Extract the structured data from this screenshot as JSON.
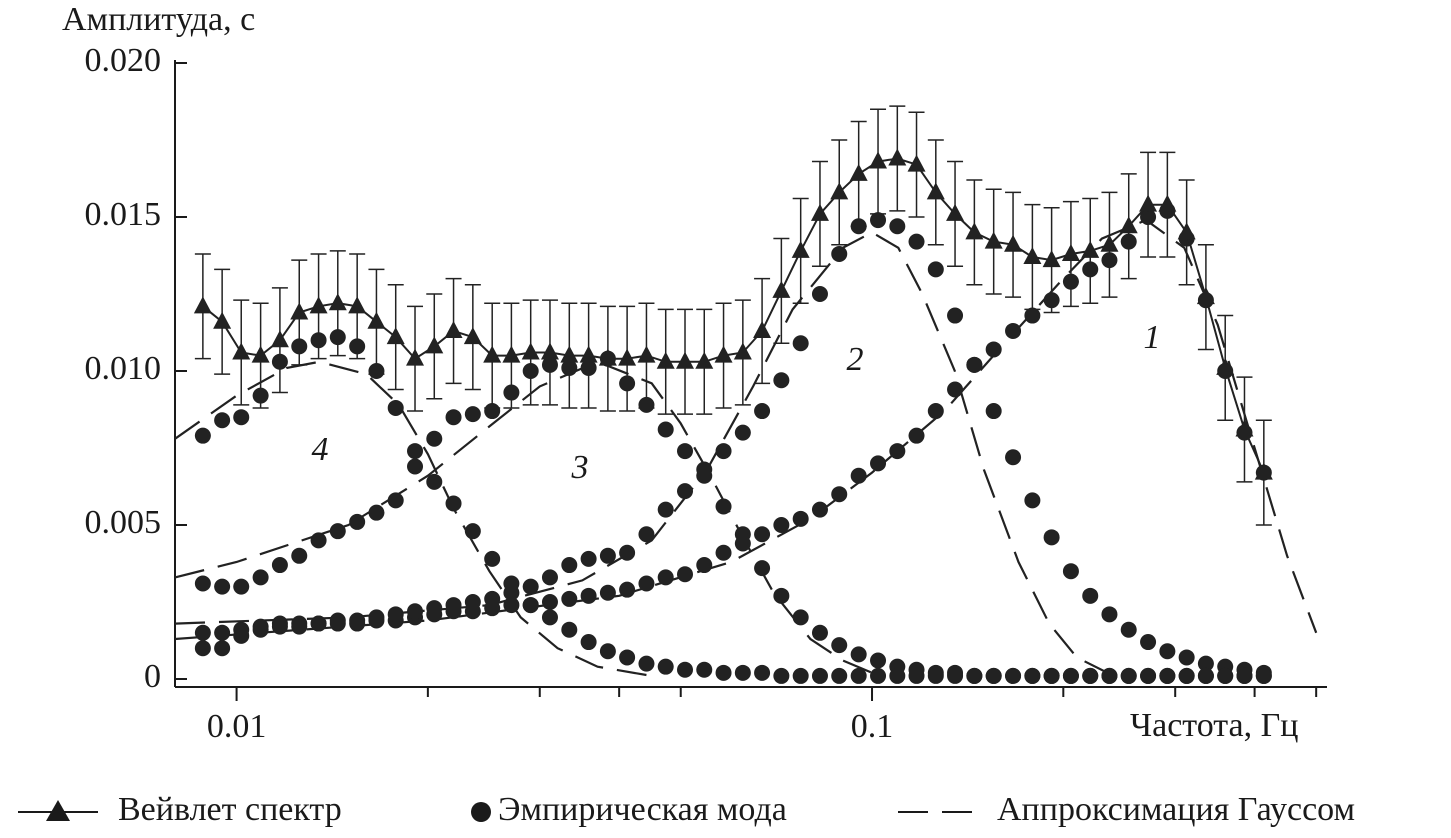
{
  "chart_data": {
    "type": "spectrum",
    "y_label": "Амплитуда, с",
    "x_label": "Частота, Гц",
    "xlog": true,
    "xlim": [
      0.008,
      0.52
    ],
    "xticks": [
      0.01,
      0.1
    ],
    "xminorticks": [
      0.02,
      0.03,
      0.04,
      0.05,
      0.2,
      0.3,
      0.4,
      0.5
    ],
    "ylim": [
      0,
      0.02
    ],
    "yticks": [
      0,
      {
        "value": 0.005,
        "label": "0.005"
      },
      {
        "value": 0.01,
        "label": "0.010"
      },
      {
        "value": 0.015,
        "label": "0.015"
      },
      {
        "value": 0.02,
        "label": "0.020"
      }
    ],
    "x": [
      0.00885,
      0.00949,
      0.01017,
      0.01091,
      0.0117,
      0.01255,
      0.01346,
      0.01443,
      0.01548,
      0.0166,
      0.0178,
      0.01909,
      0.02047,
      0.02195,
      0.02354,
      0.02525,
      0.02707,
      0.02903,
      0.03113,
      0.03339,
      0.03581,
      0.0384,
      0.04117,
      0.04416,
      0.04735,
      0.05078,
      0.05445,
      0.05839,
      0.06262,
      0.06714,
      0.072,
      0.07722,
      0.08281,
      0.0888,
      0.09528,
      0.1022,
      0.1096,
      0.1175,
      0.126,
      0.1351,
      0.1449,
      0.1554,
      0.1667,
      0.1788,
      0.1917,
      0.2056,
      0.2205,
      0.2364,
      0.2535,
      0.2719,
      0.2916,
      0.3127,
      0.3353,
      0.3596,
      0.3856,
      0.4136
    ],
    "wavelet": {
      "name": "Вейвлет спектр",
      "color": "#222222",
      "error": 0.0017,
      "values": [
        0.0121,
        0.0116,
        0.0106,
        0.0105,
        0.011,
        0.0119,
        0.0121,
        0.0122,
        0.0121,
        0.0116,
        0.0111,
        0.0104,
        0.0108,
        0.0113,
        0.0111,
        0.0105,
        0.0105,
        0.0106,
        0.0106,
        0.0105,
        0.0105,
        0.0104,
        0.0104,
        0.0105,
        0.0103,
        0.0103,
        0.0103,
        0.0105,
        0.0106,
        0.0113,
        0.0126,
        0.0139,
        0.0151,
        0.0158,
        0.0164,
        0.0168,
        0.0169,
        0.0167,
        0.0158,
        0.0151,
        0.0145,
        0.0142,
        0.0141,
        0.0137,
        0.0136,
        0.0138,
        0.0139,
        0.0141,
        0.0147,
        0.0154,
        0.0154,
        0.0145,
        0.0124,
        0.0101,
        0.0081,
        0.0067
      ]
    },
    "modes": {
      "name": "Эмпирическая мода",
      "color": "#222222",
      "curves": [
        {
          "label": "1",
          "values": [
            0.001,
            0.001,
            0.0014,
            0.0016,
            0.0017,
            0.0017,
            0.0018,
            0.0018,
            0.0018,
            0.0019,
            0.0019,
            0.002,
            0.0021,
            0.0022,
            0.0022,
            0.0023,
            0.0024,
            0.0024,
            0.0025,
            0.0026,
            0.0027,
            0.0028,
            0.0029,
            0.0031,
            0.0033,
            0.0034,
            0.0037,
            0.0041,
            0.0044,
            0.0047,
            0.005,
            0.0052,
            0.0055,
            0.006,
            0.0066,
            0.007,
            0.0074,
            0.0079,
            0.0087,
            0.0094,
            0.0102,
            0.0107,
            0.0113,
            0.0118,
            0.0123,
            0.0129,
            0.0133,
            0.0136,
            0.0142,
            0.015,
            0.0152,
            0.0143,
            0.0123,
            0.01,
            0.008,
            0.0067
          ]
        },
        {
          "label": "2",
          "values": [
            0.0015,
            0.0015,
            0.0016,
            0.0017,
            0.0018,
            0.0018,
            0.0018,
            0.0019,
            0.0019,
            0.002,
            0.0021,
            0.0022,
            0.0023,
            0.0024,
            0.0025,
            0.0026,
            0.0028,
            0.003,
            0.0033,
            0.0037,
            0.0039,
            0.004,
            0.0041,
            0.0047,
            0.0055,
            0.0061,
            0.0068,
            0.0074,
            0.008,
            0.0087,
            0.0097,
            0.0109,
            0.0125,
            0.0138,
            0.0147,
            0.0149,
            0.0147,
            0.0142,
            0.0133,
            0.0118,
            0.0102,
            0.0087,
            0.0072,
            0.0058,
            0.0046,
            0.0035,
            0.0027,
            0.0021,
            0.0016,
            0.0012,
            0.0009,
            0.0007,
            0.0005,
            0.0004,
            0.0003,
            0.0002
          ]
        },
        {
          "label": "3",
          "values": [
            0.0031,
            0.003,
            0.003,
            0.0033,
            0.0037,
            0.004,
            0.0045,
            0.0048,
            0.0051,
            0.0054,
            0.0058,
            0.0074,
            0.0078,
            0.0085,
            0.0086,
            0.0087,
            0.0093,
            0.01,
            0.0102,
            0.0101,
            0.0101,
            0.0104,
            0.0096,
            0.0089,
            0.0081,
            0.0074,
            0.0066,
            0.0056,
            0.0047,
            0.0036,
            0.0027,
            0.002,
            0.0015,
            0.0011,
            0.0008,
            0.0006,
            0.0004,
            0.0003,
            0.0002,
            0.0002,
            0.0001,
            0.0001,
            0.0001,
            0.0001,
            0.0001,
            0.0001,
            0.0001,
            0.0001,
            0.0001,
            0.0001,
            0.0001,
            0.0001,
            0.0001,
            0.0001,
            0.0001,
            0.0001
          ]
        },
        {
          "label": "4",
          "values": [
            0.0079,
            0.0084,
            0.0085,
            0.0092,
            0.0103,
            0.0108,
            0.011,
            0.0111,
            0.0108,
            0.01,
            0.0088,
            0.0069,
            0.0064,
            0.0057,
            0.0048,
            0.0039,
            0.0031,
            0.0024,
            0.002,
            0.0016,
            0.0012,
            0.0009,
            0.0007,
            0.0005,
            0.0004,
            0.0003,
            0.0003,
            0.0002,
            0.0002,
            0.0002,
            0.0001,
            0.0001,
            0.0001,
            0.0001,
            0.0001,
            0.0001,
            0.0001,
            0.0001,
            0.0001,
            0.0001,
            0.0001,
            0.0001,
            0.0001,
            0.0001,
            0.0001,
            0.0001,
            0.0001,
            0.0001,
            0.0001,
            0.0001,
            0.0001,
            0.0001,
            0.0001,
            0.0001,
            0.0001,
            0.0001
          ]
        }
      ]
    },
    "fits": {
      "name": "Аппроксимация Гауссом",
      "color": "#222222",
      "curves": [
        {
          "x": [
            0.008,
            0.02,
            0.04,
            0.06,
            0.08,
            0.1,
            0.13,
            0.16,
            0.2,
            0.23,
            0.27,
            0.31,
            0.35,
            0.4,
            0.45,
            0.5
          ],
          "values": [
            0.0013,
            0.0019,
            0.0027,
            0.0038,
            0.0052,
            0.0067,
            0.0087,
            0.0108,
            0.013,
            0.0143,
            0.0149,
            0.014,
            0.0115,
            0.0075,
            0.004,
            0.0015
          ]
        },
        {
          "x": [
            0.008,
            0.015,
            0.025,
            0.035,
            0.045,
            0.055,
            0.065,
            0.075,
            0.09,
            0.1,
            0.11,
            0.12,
            0.135,
            0.15,
            0.17,
            0.19,
            0.21,
            0.24
          ],
          "values": [
            0.0018,
            0.002,
            0.0024,
            0.0032,
            0.0045,
            0.0068,
            0.0095,
            0.012,
            0.014,
            0.0145,
            0.014,
            0.0125,
            0.01,
            0.0068,
            0.0038,
            0.0018,
            0.0007,
            0.0001
          ]
        },
        {
          "x": [
            0.008,
            0.01,
            0.015,
            0.02,
            0.025,
            0.03,
            0.037,
            0.045,
            0.05,
            0.056,
            0.063,
            0.07,
            0.08,
            0.09,
            0.1
          ],
          "values": [
            0.0033,
            0.0038,
            0.005,
            0.0066,
            0.0082,
            0.0095,
            0.0103,
            0.0096,
            0.0083,
            0.0065,
            0.0045,
            0.0028,
            0.0013,
            0.0006,
            0.0002
          ]
        },
        {
          "x": [
            0.008,
            0.01,
            0.012,
            0.0135,
            0.016,
            0.018,
            0.02,
            0.022,
            0.025,
            0.028,
            0.032,
            0.037,
            0.045
          ],
          "values": [
            0.0078,
            0.0092,
            0.0101,
            0.0103,
            0.0099,
            0.0089,
            0.0073,
            0.0055,
            0.0035,
            0.002,
            0.001,
            0.0004,
            0.0001
          ]
        }
      ]
    }
  }
}
